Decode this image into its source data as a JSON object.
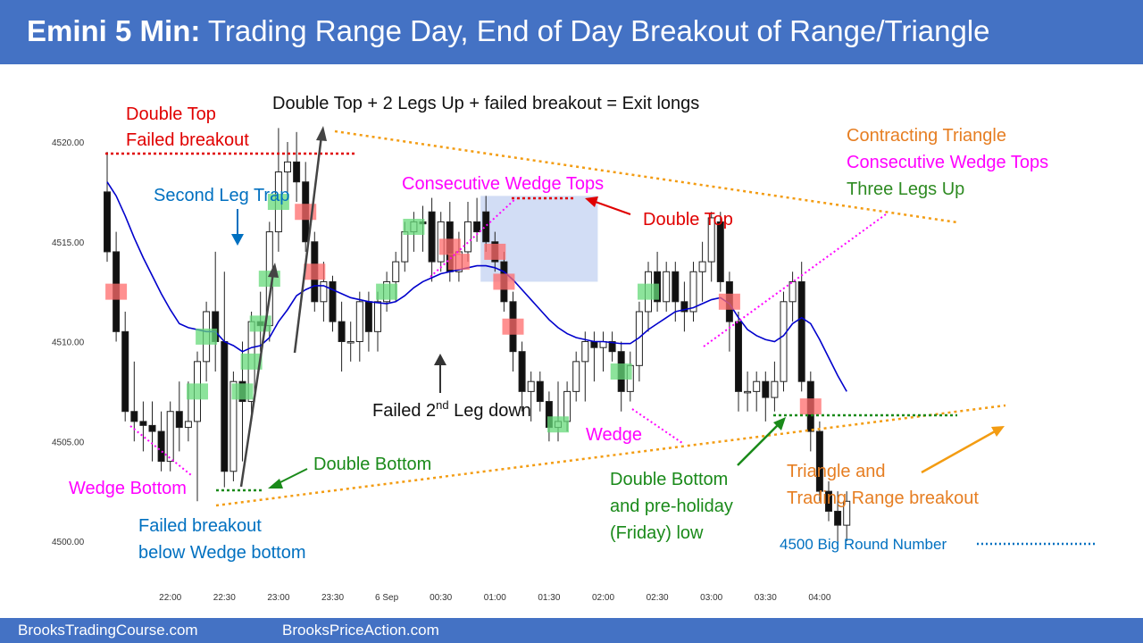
{
  "header": {
    "title_bold": "Emini 5 Min:",
    "title_rest": "Trading Range Day, End of Day Breakout of Range/Triangle",
    "bg_color": "#4472c4"
  },
  "footer": {
    "left": "BrooksTradingCourse.com",
    "right": "BrooksPriceAction.com"
  },
  "chart_data": {
    "type": "candlestick",
    "ylim": [
      4499,
      4521.5
    ],
    "y_ticks": [
      4500,
      4505,
      4510,
      4515,
      4520
    ],
    "y_tick_labels": [
      "4500.00",
      "4505.00",
      "4510.00",
      "4515.00",
      "4520.00"
    ],
    "x_ticks": [
      {
        "bar": 7,
        "label": "22:00"
      },
      {
        "bar": 13,
        "label": "22:30"
      },
      {
        "bar": 19,
        "label": "23:00"
      },
      {
        "bar": 25,
        "label": "23:30"
      },
      {
        "bar": 31,
        "label": "6 Sep"
      },
      {
        "bar": 37,
        "label": "00:30"
      },
      {
        "bar": 43,
        "label": "01:00"
      },
      {
        "bar": 49,
        "label": "01:30"
      },
      {
        "bar": 55,
        "label": "02:00"
      },
      {
        "bar": 61,
        "label": "02:30"
      },
      {
        "bar": 67,
        "label": "03:00"
      },
      {
        "bar": 73,
        "label": "03:30"
      },
      {
        "bar": 79,
        "label": "04:00"
      }
    ],
    "bars": [
      {
        "o": 4517.5,
        "h": 4519.5,
        "l": 4514,
        "c": 4514.5
      },
      {
        "o": 4514.5,
        "h": 4515.5,
        "l": 4510,
        "c": 4510.5
      },
      {
        "o": 4510.5,
        "h": 4511.5,
        "l": 4506,
        "c": 4506.5
      },
      {
        "o": 4506.5,
        "h": 4509,
        "l": 4505,
        "c": 4506
      },
      {
        "o": 4506,
        "h": 4507,
        "l": 4504.5,
        "c": 4505.8
      },
      {
        "o": 4505.8,
        "h": 4507,
        "l": 4504,
        "c": 4505.5
      },
      {
        "o": 4505.5,
        "h": 4506.5,
        "l": 4503.5,
        "c": 4504
      },
      {
        "o": 4504,
        "h": 4507,
        "l": 4503.5,
        "c": 4506.5
      },
      {
        "o": 4506.5,
        "h": 4508,
        "l": 4504.5,
        "c": 4505.7
      },
      {
        "o": 4505.7,
        "h": 4508,
        "l": 4505,
        "c": 4506
      },
      {
        "o": 4506,
        "h": 4509.5,
        "l": 4502,
        "c": 4509
      },
      {
        "o": 4509,
        "h": 4512,
        "l": 4508,
        "c": 4511.5
      },
      {
        "o": 4511.5,
        "h": 4514.5,
        "l": 4508.5,
        "c": 4510
      },
      {
        "o": 4510,
        "h": 4513.5,
        "l": 4502.7,
        "c": 4503.5
      },
      {
        "o": 4503.5,
        "h": 4508.5,
        "l": 4503,
        "c": 4508
      },
      {
        "o": 4508,
        "h": 4510,
        "l": 4504,
        "c": 4507
      },
      {
        "o": 4507,
        "h": 4511.5,
        "l": 4506,
        "c": 4511
      },
      {
        "o": 4511,
        "h": 4512.5,
        "l": 4509.5,
        "c": 4510.8
      },
      {
        "o": 4510.8,
        "h": 4516,
        "l": 4510,
        "c": 4515.5
      },
      {
        "o": 4515.5,
        "h": 4520.7,
        "l": 4514.5,
        "c": 4518.5
      },
      {
        "o": 4518.5,
        "h": 4520,
        "l": 4517.5,
        "c": 4519
      },
      {
        "o": 4519,
        "h": 4520.5,
        "l": 4517,
        "c": 4518
      },
      {
        "o": 4518,
        "h": 4519,
        "l": 4514.5,
        "c": 4515
      },
      {
        "o": 4515,
        "h": 4515.5,
        "l": 4511.5,
        "c": 4512
      },
      {
        "o": 4512,
        "h": 4514,
        "l": 4511,
        "c": 4513
      },
      {
        "o": 4513,
        "h": 4513.3,
        "l": 4510.5,
        "c": 4511
      },
      {
        "o": 4511,
        "h": 4512,
        "l": 4508.5,
        "c": 4510
      },
      {
        "o": 4510,
        "h": 4511,
        "l": 4509,
        "c": 4510
      },
      {
        "o": 4510,
        "h": 4512.5,
        "l": 4509,
        "c": 4512
      },
      {
        "o": 4512,
        "h": 4512.5,
        "l": 4509.5,
        "c": 4510.5
      },
      {
        "o": 4510.5,
        "h": 4512.5,
        "l": 4509.5,
        "c": 4512
      },
      {
        "o": 4512,
        "h": 4513.5,
        "l": 4511.5,
        "c": 4513
      },
      {
        "o": 4513,
        "h": 4514.5,
        "l": 4512,
        "c": 4514
      },
      {
        "o": 4514,
        "h": 4516,
        "l": 4513.5,
        "c": 4515.5
      },
      {
        "o": 4515.5,
        "h": 4516.5,
        "l": 4514.5,
        "c": 4516
      },
      {
        "o": 4516,
        "h": 4516.8,
        "l": 4514.5,
        "c": 4515.9
      },
      {
        "o": 4516.5,
        "h": 4517.2,
        "l": 4513,
        "c": 4514
      },
      {
        "o": 4514,
        "h": 4516.5,
        "l": 4513.5,
        "c": 4516
      },
      {
        "o": 4516,
        "h": 4517,
        "l": 4513,
        "c": 4513.5
      },
      {
        "o": 4513.5,
        "h": 4515.5,
        "l": 4513,
        "c": 4514.5
      },
      {
        "o": 4514.5,
        "h": 4517,
        "l": 4514,
        "c": 4516
      },
      {
        "o": 4516,
        "h": 4517.2,
        "l": 4515,
        "c": 4515.5
      },
      {
        "o": 4516.5,
        "h": 4517.3,
        "l": 4514.5,
        "c": 4515
      },
      {
        "o": 4515,
        "h": 4515.5,
        "l": 4513.5,
        "c": 4514
      },
      {
        "o": 4514,
        "h": 4514.5,
        "l": 4511.5,
        "c": 4512
      },
      {
        "o": 4512,
        "h": 4512.5,
        "l": 4508.5,
        "c": 4509.5
      },
      {
        "o": 4509.5,
        "h": 4510,
        "l": 4506.5,
        "c": 4507.5
      },
      {
        "o": 4507.5,
        "h": 4508.5,
        "l": 4506,
        "c": 4508
      },
      {
        "o": 4508,
        "h": 4508.5,
        "l": 4506.5,
        "c": 4507
      },
      {
        "o": 4507,
        "h": 4507.5,
        "l": 4505,
        "c": 4505.7
      },
      {
        "o": 4505.7,
        "h": 4508,
        "l": 4505,
        "c": 4506
      },
      {
        "o": 4506,
        "h": 4508,
        "l": 4505.5,
        "c": 4507.5
      },
      {
        "o": 4507.5,
        "h": 4509.5,
        "l": 4507,
        "c": 4509
      },
      {
        "o": 4509,
        "h": 4510.5,
        "l": 4507,
        "c": 4510
      },
      {
        "o": 4510,
        "h": 4510.5,
        "l": 4508,
        "c": 4509.7
      },
      {
        "o": 4509.7,
        "h": 4510.5,
        "l": 4508.5,
        "c": 4510
      },
      {
        "o": 4510,
        "h": 4510.5,
        "l": 4509,
        "c": 4509.5
      },
      {
        "o": 4509.5,
        "h": 4510,
        "l": 4506.5,
        "c": 4507.5
      },
      {
        "o": 4507.5,
        "h": 4509.5,
        "l": 4507,
        "c": 4508.8
      },
      {
        "o": 4508.8,
        "h": 4512,
        "l": 4508,
        "c": 4511.5
      },
      {
        "o": 4511.5,
        "h": 4514,
        "l": 4510.5,
        "c": 4513.5
      },
      {
        "o": 4513.5,
        "h": 4514.5,
        "l": 4511.5,
        "c": 4512
      },
      {
        "o": 4512,
        "h": 4514,
        "l": 4511.5,
        "c": 4513.5
      },
      {
        "o": 4513.5,
        "h": 4514,
        "l": 4511,
        "c": 4512
      },
      {
        "o": 4512,
        "h": 4513,
        "l": 4510.5,
        "c": 4511.5
      },
      {
        "o": 4511.5,
        "h": 4514,
        "l": 4511,
        "c": 4513.5
      },
      {
        "o": 4513.5,
        "h": 4515,
        "l": 4512,
        "c": 4514
      },
      {
        "o": 4514,
        "h": 4516.5,
        "l": 4513,
        "c": 4516.2
      },
      {
        "o": 4516,
        "h": 4516.5,
        "l": 4512.5,
        "c": 4513
      },
      {
        "o": 4513,
        "h": 4513.5,
        "l": 4509.5,
        "c": 4511
      },
      {
        "o": 4511,
        "h": 4511.5,
        "l": 4506.5,
        "c": 4507.5
      },
      {
        "o": 4507.5,
        "h": 4508.5,
        "l": 4506.5,
        "c": 4507.5
      },
      {
        "o": 4507.5,
        "h": 4508.5,
        "l": 4506.5,
        "c": 4508
      },
      {
        "o": 4508,
        "h": 4508.5,
        "l": 4506,
        "c": 4507.2
      },
      {
        "o": 4507.2,
        "h": 4509,
        "l": 4506.5,
        "c": 4508
      },
      {
        "o": 4508,
        "h": 4512.5,
        "l": 4507.5,
        "c": 4512
      },
      {
        "o": 4512,
        "h": 4513.5,
        "l": 4511,
        "c": 4513
      },
      {
        "o": 4513,
        "h": 4514,
        "l": 4507.5,
        "c": 4508
      },
      {
        "o": 4508,
        "h": 4508.5,
        "l": 4504.5,
        "c": 4505.5
      },
      {
        "o": 4505.5,
        "h": 4506,
        "l": 4502,
        "c": 4502.5
      },
      {
        "o": 4502.5,
        "h": 4503,
        "l": 4501,
        "c": 4501.5
      },
      {
        "o": 4501.5,
        "h": 4502.5,
        "l": 4500,
        "c": 4500.8
      },
      {
        "o": 4500.8,
        "h": 4502.5,
        "l": 4500,
        "c": 4502
      }
    ],
    "ema": [
      4518,
      4517.3,
      4516.3,
      4515.2,
      4514.2,
      4513.3,
      4512.4,
      4511.6,
      4510.9,
      4510.7,
      4510.6,
      4510.5,
      4510.5,
      4510,
      4509.8,
      4509.5,
      4509.7,
      4509.8,
      4510.2,
      4511,
      4511.6,
      4512.3,
      4512.6,
      4512.8,
      4512.8,
      4512.6,
      4512.4,
      4512.2,
      4512.1,
      4512,
      4511.95,
      4511.9,
      4512,
      4512.3,
      4512.7,
      4513,
      4513.2,
      4513.4,
      4513.5,
      4513.6,
      4513.7,
      4513.8,
      4513.8,
      4513.7,
      4513.5,
      4513.1,
      4512.6,
      4512.1,
      4511.6,
      4511.1,
      4510.7,
      4510.4,
      4510.2,
      4510.1,
      4510,
      4510,
      4509.95,
      4509.9,
      4509.9,
      4510.2,
      4510.6,
      4510.9,
      4511.2,
      4511.5,
      4511.6,
      4511.7,
      4511.9,
      4512.1,
      4512.2,
      4511.9,
      4511.2,
      4510.6,
      4510.3,
      4510.1,
      4510,
      4510.3,
      4510.9,
      4511.2,
      4510.9,
      4510.1,
      4509.2,
      4508.3,
      4507.5
    ]
  },
  "overlays": {
    "red_bar_indices": [
      1,
      22,
      23,
      38,
      39,
      43,
      44,
      45,
      69,
      78
    ],
    "green_bar_indices": [
      10,
      11,
      15,
      16,
      17,
      18,
      19,
      31,
      34,
      50,
      57,
      60
    ],
    "red_color": "#ff6b6b",
    "green_color": "#66d97a",
    "highlight_color": "#b4c6ef"
  },
  "annotations": {
    "double_top_l1": "Double Top",
    "double_top_l2": "Failed breakout",
    "double_top_legs": "Double Top + 2 Legs Up + failed breakout = Exit longs",
    "second_leg_trap": "Second Leg Trap",
    "consecutive_wedge_tops": "Consecutive Wedge Tops",
    "double_top": "Double Top",
    "contracting_triangle": "Contracting Triangle",
    "consecutive_wedge_tops_2": "Consecutive Wedge Tops",
    "three_legs_up": "Three Legs Up",
    "failed_2nd_leg_pre": "Failed 2",
    "failed_2nd_leg_sup": "nd",
    "failed_2nd_leg_post": " Leg down",
    "wedge": "Wedge",
    "double_bottom": "Double Bottom",
    "wedge_bottom": "Wedge Bottom",
    "failed_breakout_l1": "Failed breakout",
    "failed_breakout_l2": "below Wedge bottom",
    "db_preholiday_l1": "Double Bottom",
    "db_preholiday_l2": "and pre-holiday",
    "db_preholiday_l3": "(Friday) low",
    "triangle_breakout_l1": "Triangle and",
    "triangle_breakout_l2": "Trading Range breakout",
    "big_round_number": "4500 Big Round Number"
  }
}
